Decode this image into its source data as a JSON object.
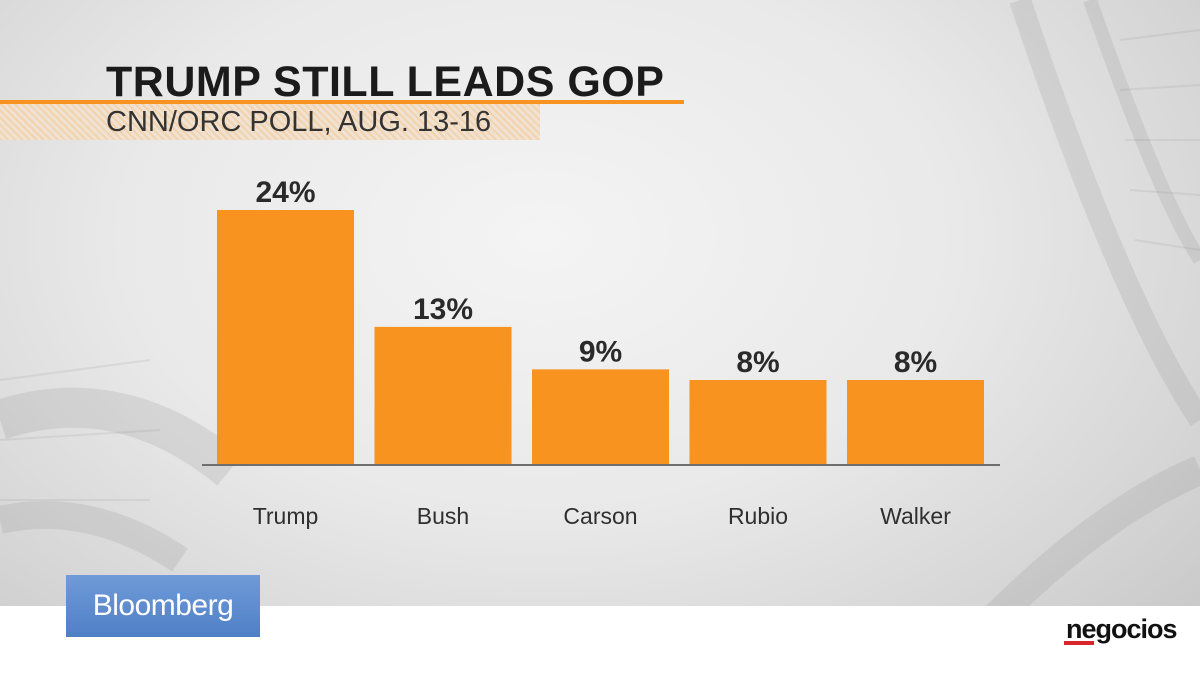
{
  "chart_data": {
    "type": "bar",
    "title": "TRUMP STILL LEADS GOP",
    "subtitle": "CNN/ORC POLL, AUG. 13-16",
    "categories": [
      "Trump",
      "Bush",
      "Carson",
      "Rubio",
      "Walker"
    ],
    "values": [
      24,
      13,
      9,
      8,
      8
    ],
    "value_labels": [
      "24%",
      "13%",
      "9%",
      "8%",
      "8%"
    ],
    "unit": "%",
    "ylim": [
      0,
      24
    ],
    "grid": false,
    "legend": "none",
    "bar_color": "#f7931e"
  },
  "branding": {
    "broadcaster": "Bloomberg",
    "publisher": "negocios",
    "broadcaster_color": "#5a89cc",
    "publisher_accent_color": "#d9262c"
  }
}
